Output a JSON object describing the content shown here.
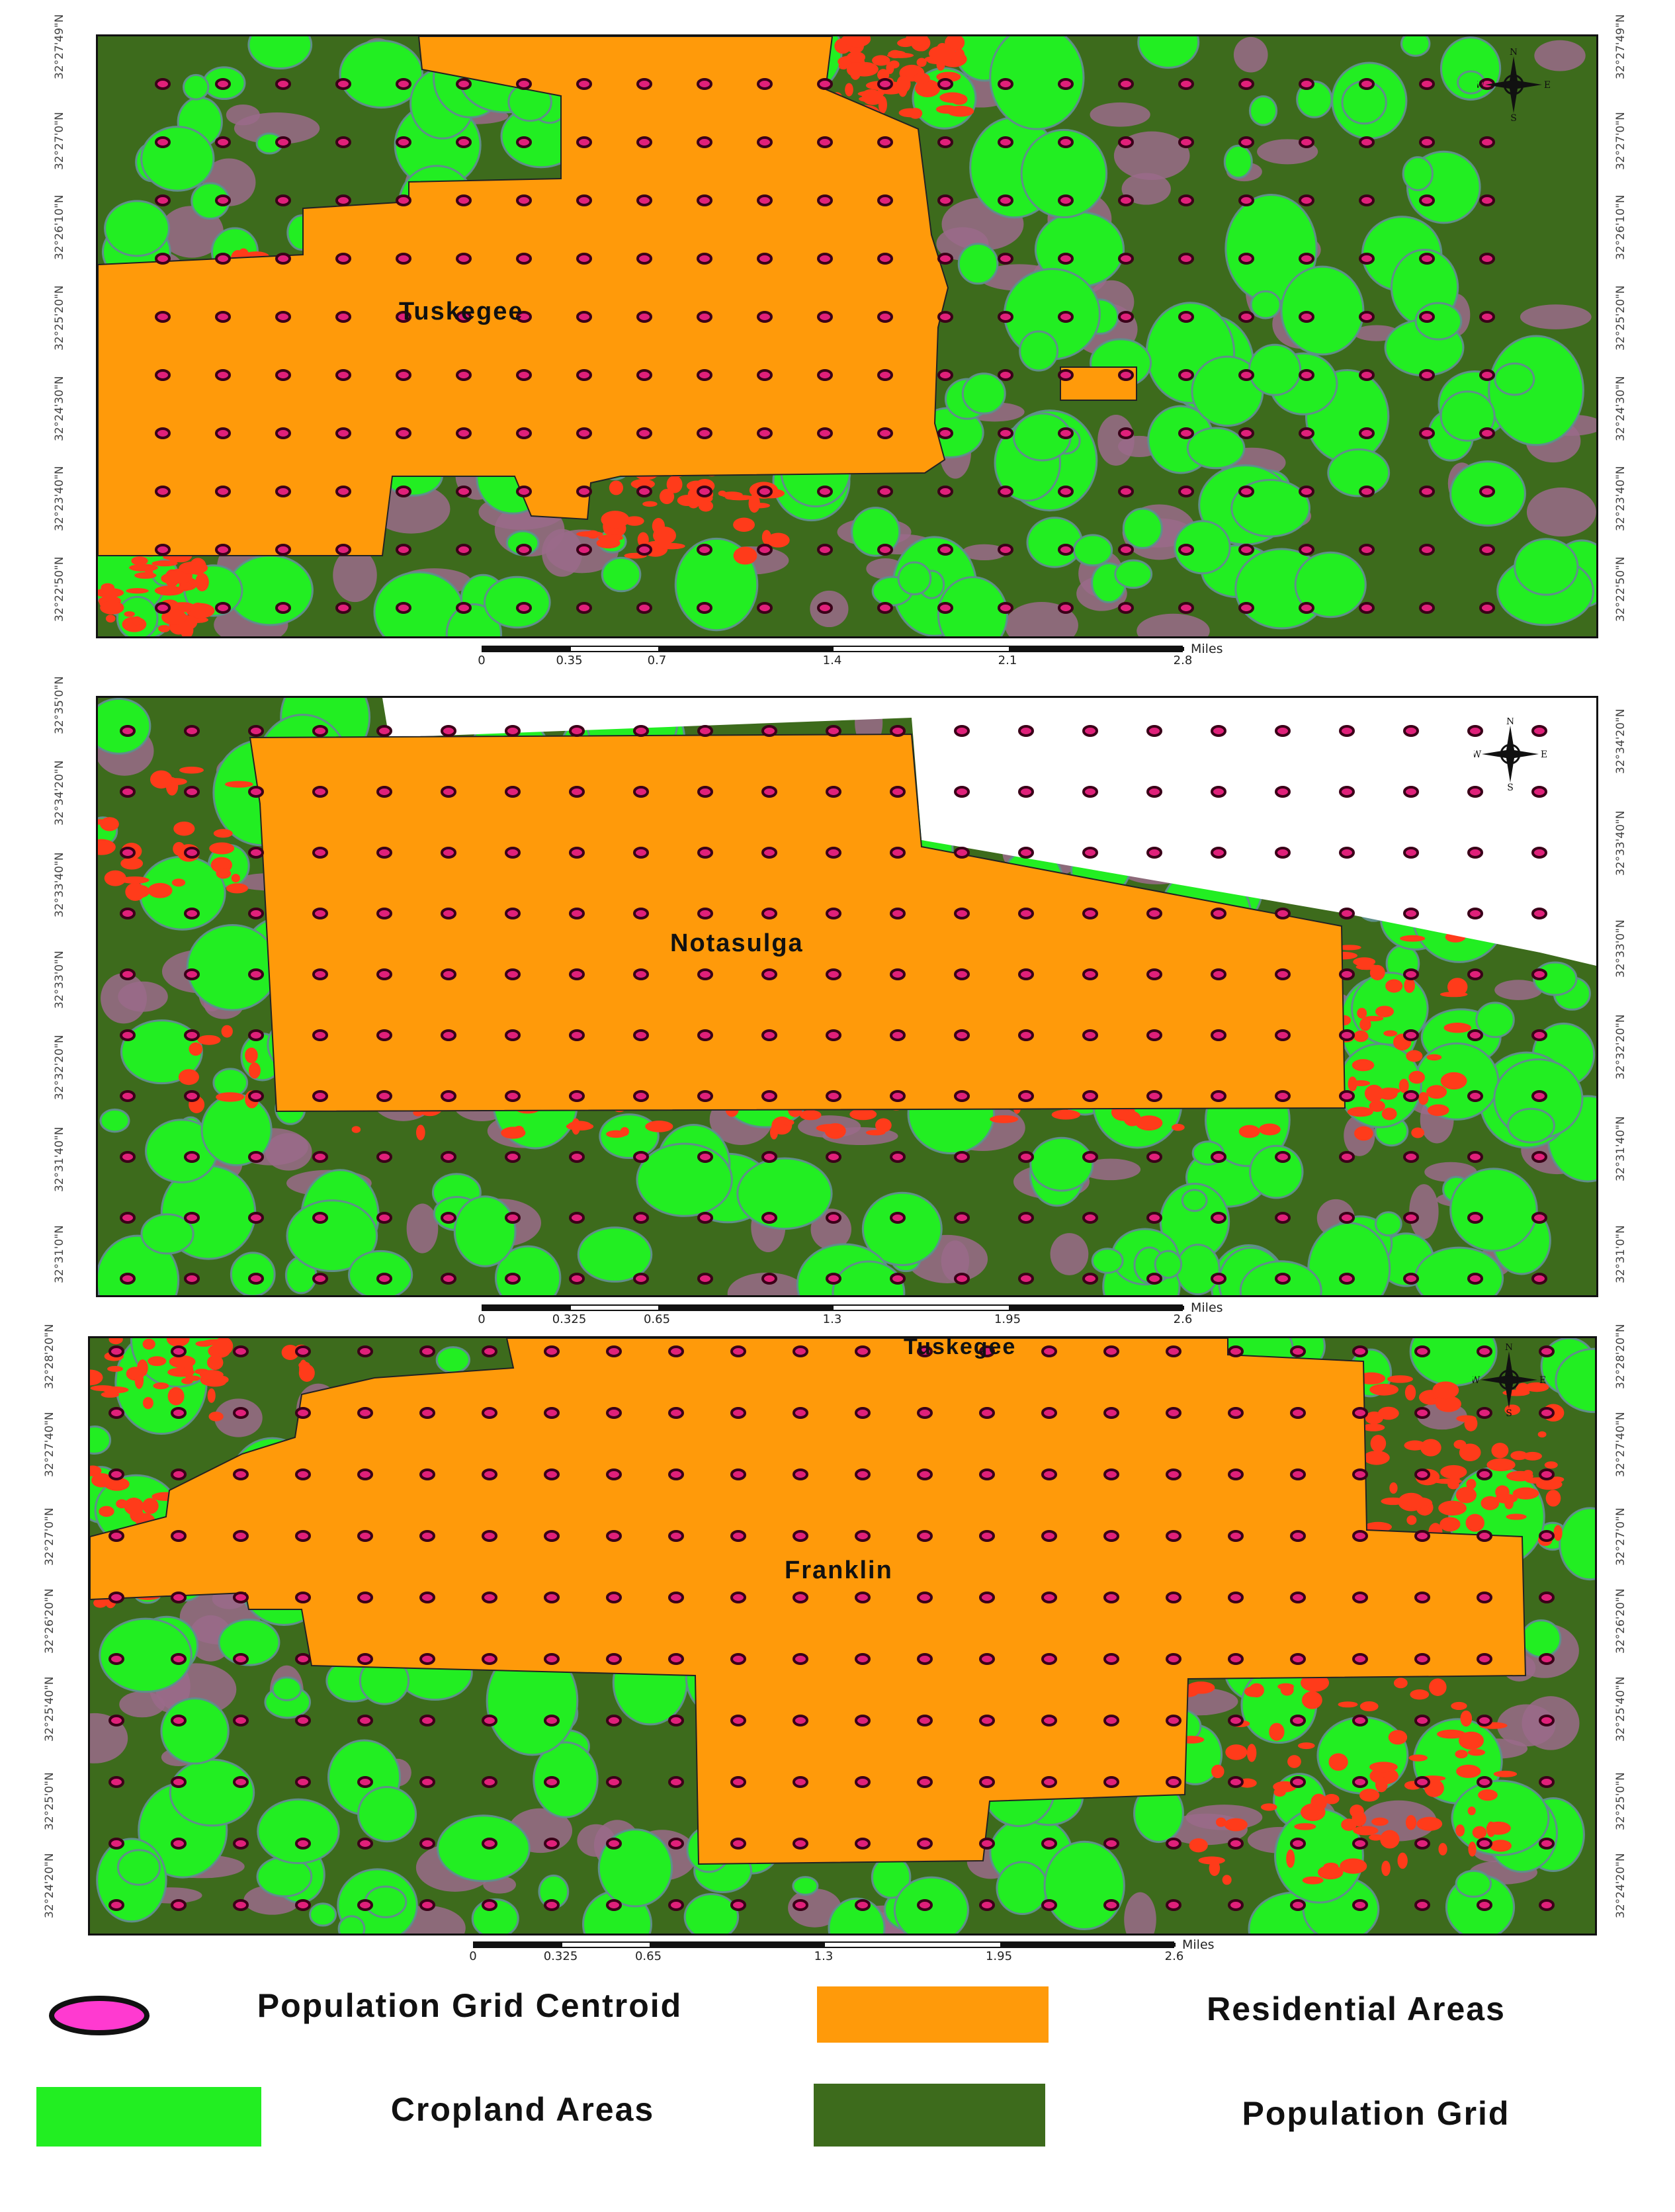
{
  "colors": {
    "population_grid": "#3d6b1c",
    "cropland": "#22ee22",
    "residential": "#ff9a0a",
    "urban_red": "#ff3b1a",
    "purple": "#9a6a8a",
    "centroid_fill": "#e0207a",
    "centroid_stroke": "#3a0018"
  },
  "panels": [
    {
      "place_label": "Tuskegee",
      "left_coords": [
        "32°27'49\"N",
        "32°27'0\"N",
        "32°26'10\"N",
        "32°25'20\"N",
        "32°24'30\"N",
        "32°23'40\"N",
        "32°22'50\"N"
      ],
      "right_coords": [
        "32°27'49\"N",
        "32°27'0\"N",
        "32°26'10\"N",
        "32°25'20\"N",
        "32°24'30\"N",
        "32°23'40\"N",
        "32°22'50\"N"
      ],
      "scale": {
        "ticks": [
          "0",
          "0.35",
          "0.7",
          "1.4",
          "2.1",
          "2.8"
        ],
        "unit": "Miles"
      }
    },
    {
      "place_label": "Notasulga",
      "left_coords": [
        "32°35'0\"N",
        "32°34'20\"N",
        "32°33'40\"N",
        "32°33'0\"N",
        "32°32'20\"N",
        "32°31'40\"N",
        "32°31'0\"N"
      ],
      "right_coords": [
        "32°34'20\"N",
        "32°33'40\"N",
        "32°33'0\"N",
        "32°32'20\"N",
        "32°31'40\"N",
        "32°31'0\"N"
      ],
      "scale": {
        "ticks": [
          "0",
          "0.325",
          "0.65",
          "1.3",
          "1.95",
          "2.6"
        ],
        "unit": "Miles"
      }
    },
    {
      "place_label": "Franklin",
      "top_label": "Tuskegee",
      "left_coords": [
        "32°28'20\"N",
        "32°27'40\"N",
        "32°27'0\"N",
        "32°26'20\"N",
        "32°25'40\"N",
        "32°25'0\"N",
        "32°24'20\"N"
      ],
      "right_coords": [
        "32°28'20\"N",
        "32°27'40\"N",
        "32°27'0\"N",
        "32°26'20\"N",
        "32°25'40\"N",
        "32°25'0\"N",
        "32°24'20\"N"
      ],
      "scale": {
        "ticks": [
          "0",
          "0.325",
          "0.65",
          "1.3",
          "1.95",
          "2.6"
        ],
        "unit": "Miles"
      }
    }
  ],
  "compass_letters": {
    "n": "N",
    "s": "S",
    "e": "E",
    "w": "W"
  },
  "legend": {
    "centroid": "Population Grid Centroid",
    "residential": "Residential Areas",
    "cropland": "Cropland Areas",
    "population_grid": "Population Grid"
  }
}
